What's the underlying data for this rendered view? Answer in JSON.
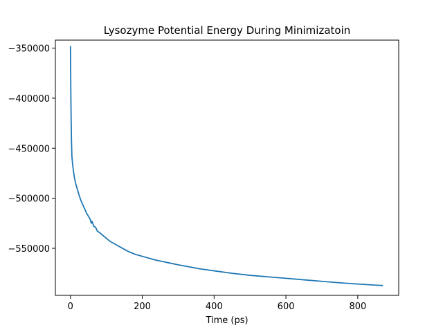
{
  "chart_data": {
    "type": "line",
    "title": "Lysozyme Potential Energy During Minimizatoin",
    "xlabel": "Time (ps)",
    "ylabel": "",
    "xlim": [
      -42,
      914
    ],
    "ylim": [
      -597000,
      -342000
    ],
    "x_ticks": [
      0,
      200,
      400,
      600,
      800
    ],
    "x_tick_labels": [
      "0",
      "200",
      "400",
      "600",
      "800"
    ],
    "y_ticks": [
      -350000,
      -400000,
      -450000,
      -500000,
      -550000
    ],
    "y_tick_labels": [
      "−350000",
      "−400000",
      "−450000",
      "−500000",
      "−550000"
    ],
    "grid": false,
    "series": [
      {
        "color": "#1f77b4",
        "x": [
          0,
          1,
          2,
          3,
          4,
          6,
          8,
          10,
          12,
          15,
          20,
          25,
          30,
          35,
          40,
          45,
          50,
          55,
          58,
          60,
          65,
          70,
          75,
          80,
          90,
          100,
          110,
          120,
          130,
          140,
          150,
          160,
          170,
          180,
          190,
          200,
          220,
          240,
          260,
          280,
          300,
          330,
          360,
          400,
          450,
          500,
          550,
          600,
          650,
          700,
          750,
          800,
          850,
          870
        ],
        "y": [
          -348000,
          -392000,
          -425000,
          -445000,
          -458000,
          -466000,
          -472000,
          -477000,
          -481000,
          -486000,
          -492000,
          -498000,
          -503000,
          -507000,
          -511000,
          -515000,
          -518000,
          -521000,
          -525000,
          -523000,
          -528000,
          -529000,
          -533000,
          -534000,
          -537000,
          -540000,
          -543000,
          -545000,
          -547000,
          -549000,
          -551000,
          -553000,
          -554500,
          -556000,
          -557000,
          -558000,
          -560000,
          -562000,
          -563500,
          -565000,
          -566500,
          -568500,
          -570500,
          -572500,
          -575000,
          -577000,
          -578500,
          -580000,
          -581500,
          -583000,
          -584500,
          -585700,
          -586800,
          -587200
        ]
      }
    ]
  }
}
